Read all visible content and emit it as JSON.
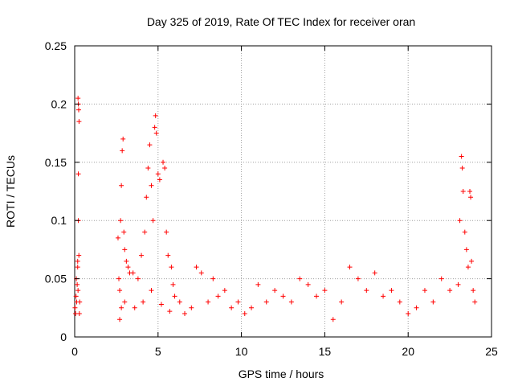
{
  "chart_data": {
    "type": "scatter",
    "title": "Day 325 of 2019, Rate Of TEC Index for receiver oran",
    "xlabel": "GPS time / hours",
    "ylabel": "ROTI / TECUs",
    "xlim": [
      0,
      25
    ],
    "ylim": [
      0,
      0.25
    ],
    "xticks": [
      "0",
      "5",
      "10",
      "15",
      "20",
      "25"
    ],
    "yticks": [
      "0",
      "0.05",
      "0.1",
      "0.15",
      "0.2",
      "0.25"
    ],
    "grid": true,
    "marker": "plus",
    "color": "#ff0000",
    "series": [
      {
        "points": [
          [
            0.02,
            0.025
          ],
          [
            0.05,
            0.02
          ],
          [
            0.08,
            0.035
          ],
          [
            0.1,
            0.05
          ],
          [
            0.12,
            0.03
          ],
          [
            0.15,
            0.045
          ],
          [
            0.18,
            0.06
          ],
          [
            0.2,
            0.04
          ],
          [
            0.22,
            0.1
          ],
          [
            0.25,
            0.07
          ],
          [
            0.22,
            0.14
          ],
          [
            0.2,
            0.205
          ],
          [
            0.22,
            0.2
          ],
          [
            0.24,
            0.195
          ],
          [
            0.26,
            0.185
          ],
          [
            0.18,
            0.065
          ],
          [
            0.3,
            0.03
          ],
          [
            0.28,
            0.02
          ],
          [
            2.6,
            0.085
          ],
          [
            2.65,
            0.05
          ],
          [
            2.7,
            0.04
          ],
          [
            2.75,
            0.1
          ],
          [
            2.8,
            0.13
          ],
          [
            2.85,
            0.16
          ],
          [
            2.9,
            0.17
          ],
          [
            2.95,
            0.09
          ],
          [
            3.0,
            0.075
          ],
          [
            3.1,
            0.065
          ],
          [
            3.2,
            0.06
          ],
          [
            3.3,
            0.055
          ],
          [
            2.7,
            0.015
          ],
          [
            2.8,
            0.025
          ],
          [
            3.0,
            0.03
          ],
          [
            3.5,
            0.055
          ],
          [
            3.8,
            0.05
          ],
          [
            4.0,
            0.07
          ],
          [
            4.2,
            0.09
          ],
          [
            4.3,
            0.12
          ],
          [
            4.4,
            0.145
          ],
          [
            4.5,
            0.165
          ],
          [
            4.6,
            0.13
          ],
          [
            4.7,
            0.1
          ],
          [
            4.8,
            0.18
          ],
          [
            4.85,
            0.19
          ],
          [
            4.9,
            0.175
          ],
          [
            5.0,
            0.14
          ],
          [
            5.1,
            0.135
          ],
          [
            5.3,
            0.15
          ],
          [
            5.4,
            0.145
          ],
          [
            5.5,
            0.09
          ],
          [
            5.6,
            0.07
          ],
          [
            5.8,
            0.06
          ],
          [
            5.9,
            0.045
          ],
          [
            6.0,
            0.035
          ],
          [
            3.6,
            0.025
          ],
          [
            4.1,
            0.03
          ],
          [
            4.6,
            0.04
          ],
          [
            5.2,
            0.028
          ],
          [
            5.7,
            0.022
          ],
          [
            6.3,
            0.03
          ],
          [
            6.6,
            0.02
          ],
          [
            7.0,
            0.025
          ],
          [
            7.3,
            0.06
          ],
          [
            7.6,
            0.055
          ],
          [
            8.0,
            0.03
          ],
          [
            8.3,
            0.05
          ],
          [
            8.6,
            0.035
          ],
          [
            9.0,
            0.04
          ],
          [
            9.4,
            0.025
          ],
          [
            9.8,
            0.03
          ],
          [
            10.2,
            0.02
          ],
          [
            10.6,
            0.025
          ],
          [
            11.0,
            0.045
          ],
          [
            11.5,
            0.03
          ],
          [
            12.0,
            0.04
          ],
          [
            12.5,
            0.035
          ],
          [
            13.0,
            0.03
          ],
          [
            13.5,
            0.05
          ],
          [
            14.0,
            0.045
          ],
          [
            14.5,
            0.035
          ],
          [
            15.0,
            0.04
          ],
          [
            15.5,
            0.015
          ],
          [
            16.0,
            0.03
          ],
          [
            16.5,
            0.06
          ],
          [
            17.0,
            0.05
          ],
          [
            17.5,
            0.04
          ],
          [
            18.0,
            0.055
          ],
          [
            18.5,
            0.035
          ],
          [
            19.0,
            0.04
          ],
          [
            19.5,
            0.03
          ],
          [
            20.0,
            0.02
          ],
          [
            20.5,
            0.025
          ],
          [
            21.0,
            0.04
          ],
          [
            21.5,
            0.03
          ],
          [
            22.0,
            0.05
          ],
          [
            22.5,
            0.04
          ],
          [
            23.0,
            0.045
          ],
          [
            23.1,
            0.1
          ],
          [
            23.2,
            0.155
          ],
          [
            23.25,
            0.145
          ],
          [
            23.3,
            0.125
          ],
          [
            23.4,
            0.09
          ],
          [
            23.5,
            0.075
          ],
          [
            23.6,
            0.06
          ],
          [
            23.7,
            0.125
          ],
          [
            23.75,
            0.12
          ],
          [
            23.8,
            0.065
          ],
          [
            23.9,
            0.04
          ],
          [
            24.0,
            0.03
          ]
        ]
      }
    ]
  }
}
